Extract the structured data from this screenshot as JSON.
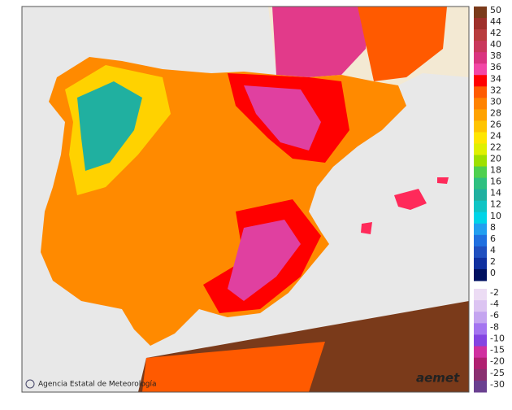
{
  "map": {
    "credit": "Agencia Estatal de Meteorología",
    "logo": "aemet"
  },
  "legend": {
    "upper": [
      {
        "value": 50,
        "color": "#7a3a1a"
      },
      {
        "value": 44,
        "color": "#9e2f2a"
      },
      {
        "value": 42,
        "color": "#b83c3e"
      },
      {
        "value": 40,
        "color": "#c9385c"
      },
      {
        "value": 38,
        "color": "#da3480"
      },
      {
        "value": 36,
        "color": "#f247a6"
      },
      {
        "value": 34,
        "color": "#ff0000"
      },
      {
        "value": 32,
        "color": "#ff5a00"
      },
      {
        "value": 30,
        "color": "#ff8200"
      },
      {
        "value": 28,
        "color": "#ffa200"
      },
      {
        "value": 26,
        "color": "#ffc400"
      },
      {
        "value": 24,
        "color": "#ffe600"
      },
      {
        "value": 22,
        "color": "#dff000"
      },
      {
        "value": 20,
        "color": "#9ee000"
      },
      {
        "value": 18,
        "color": "#4fd04f"
      },
      {
        "value": 16,
        "color": "#2fc080"
      },
      {
        "value": 14,
        "color": "#20b0a0"
      },
      {
        "value": 12,
        "color": "#10c4c4"
      },
      {
        "value": 10,
        "color": "#00d4e8"
      },
      {
        "value": 8,
        "color": "#229ff0"
      },
      {
        "value": 6,
        "color": "#2070e0"
      },
      {
        "value": 4,
        "color": "#2050c0"
      },
      {
        "value": 2,
        "color": "#1030a0"
      },
      {
        "value": 0,
        "color": "#001060"
      }
    ],
    "lower": [
      {
        "value": -2,
        "color": "#ecdcf4"
      },
      {
        "value": -4,
        "color": "#dcc4f2"
      },
      {
        "value": -6,
        "color": "#c4a4f0"
      },
      {
        "value": -8,
        "color": "#a474f0"
      },
      {
        "value": -10,
        "color": "#8444e2"
      },
      {
        "value": -15,
        "color": "#d030a0"
      },
      {
        "value": -20,
        "color": "#b02070"
      },
      {
        "value": -25,
        "color": "#8a3070"
      },
      {
        "value": -30,
        "color": "#6a4090"
      }
    ]
  }
}
